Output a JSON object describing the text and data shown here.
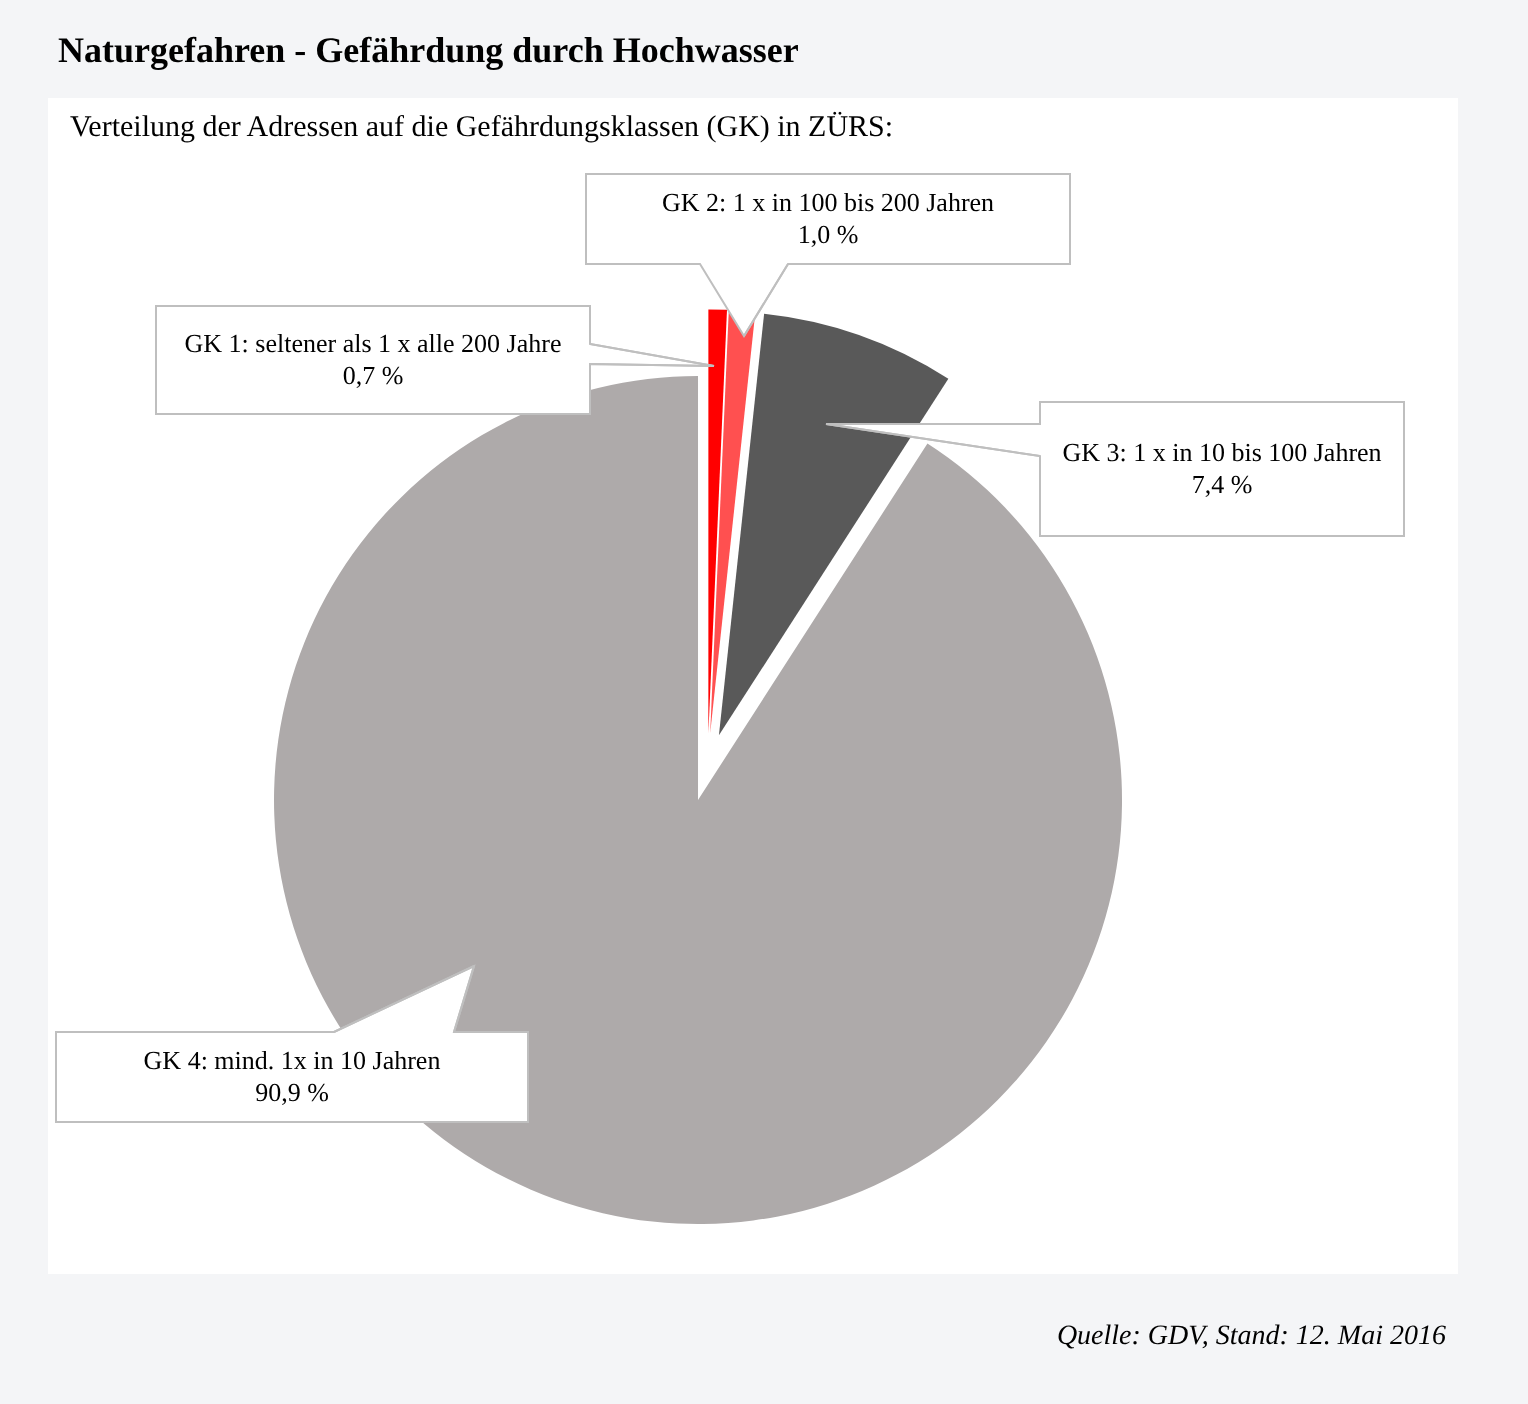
{
  "chart_data": {
    "type": "pie",
    "title": "Naturgefahren - Gefährdung durch Hochwasser",
    "subtitle": "Verteilung der Adressen auf die Gefährdungsklassen (GK) in ZÜRS:",
    "categories": [
      "GK 1: seltener als 1 x alle 200 Jahre",
      "GK 2: 1 x in 100 bis 200 Jahren",
      "GK 3: 1 x in 10 bis 100 Jahren",
      "GK 4: mind. 1x in 10 Jahren"
    ],
    "values": [
      0.7,
      1.0,
      7.4,
      90.9
    ],
    "colors": [
      "#ff0000",
      "#ff5050",
      "#595959",
      "#aeaaaa"
    ],
    "value_labels": [
      "0,7 %",
      "1,0 %",
      "7,4 %",
      "90,9 %"
    ],
    "annotations": [
      "Quelle: GDV, Stand: 12. Mai 2016"
    ]
  }
}
